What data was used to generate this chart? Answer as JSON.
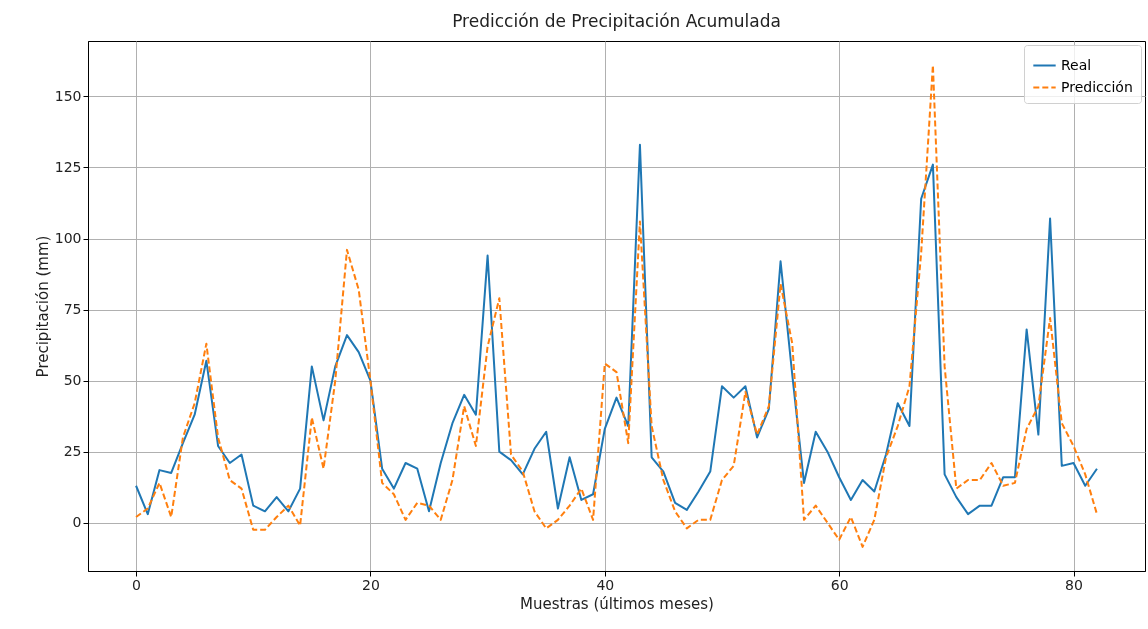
{
  "chart_data": {
    "type": "line",
    "title": "Predicción de Precipitación Acumulada",
    "xlabel": "Muestras (últimos meses)",
    "ylabel": "Precipitación (mm)",
    "x": [
      0,
      1,
      2,
      3,
      4,
      5,
      6,
      7,
      8,
      9,
      10,
      11,
      12,
      13,
      14,
      15,
      16,
      17,
      18,
      19,
      20,
      21,
      22,
      23,
      24,
      25,
      26,
      27,
      28,
      29,
      30,
      31,
      32,
      33,
      34,
      35,
      36,
      37,
      38,
      39,
      40,
      41,
      42,
      43,
      44,
      45,
      46,
      47,
      48,
      49,
      50,
      51,
      52,
      53,
      54,
      55,
      56,
      57,
      58,
      59,
      60,
      61,
      62,
      63,
      64,
      65,
      66,
      67,
      68,
      69,
      70,
      71,
      72,
      73,
      74,
      75,
      76,
      77,
      78,
      79,
      80,
      81,
      82
    ],
    "series": [
      {
        "name": "Real",
        "color": "#1f77b4",
        "line_style": "solid",
        "values": [
          13,
          3,
          18.5,
          17.5,
          28,
          38,
          57,
          27,
          21,
          24,
          6,
          4,
          9,
          4,
          12,
          55,
          36,
          55,
          66,
          60,
          50,
          19,
          12,
          21,
          19,
          4,
          21,
          35,
          45,
          38,
          94,
          25,
          22,
          17,
          26,
          32,
          5,
          23,
          8,
          10,
          33,
          44,
          34,
          133,
          23,
          18,
          7,
          4.5,
          11,
          18,
          48,
          44,
          48,
          30,
          40,
          92,
          52,
          14,
          32,
          25,
          16,
          8,
          15,
          11,
          24,
          42,
          34,
          114,
          126,
          17,
          9,
          3,
          6,
          6,
          16,
          16,
          68,
          31,
          107,
          20,
          21,
          13,
          19
        ]
      },
      {
        "name": "Predicción",
        "color": "#ff7f0e",
        "line_style": "dashed",
        "values": [
          2,
          5,
          14,
          2,
          30,
          42,
          63,
          30,
          15,
          12,
          -2.5,
          -2.5,
          2,
          6,
          -1,
          37,
          19,
          50,
          96,
          82,
          50,
          14,
          10,
          1,
          7,
          6,
          1,
          15,
          41,
          27,
          62,
          79,
          24,
          18,
          4,
          -2,
          1,
          6,
          12,
          1,
          56,
          53,
          28,
          106,
          34,
          15,
          4,
          -2,
          1,
          1,
          15,
          20,
          46,
          31,
          41,
          84,
          63,
          1,
          6,
          0,
          -6,
          2,
          -8.5,
          1,
          23,
          34,
          48,
          95,
          161,
          55,
          12,
          15,
          15,
          21,
          13,
          14,
          33,
          41,
          72,
          35,
          27,
          17,
          3
        ]
      }
    ],
    "xlim": [
      -4.1,
      86.1
    ],
    "xticks": [
      0,
      20,
      40,
      60,
      80
    ],
    "ylim": [
      -17,
      169.5
    ],
    "yticks": [
      0,
      25,
      50,
      75,
      100,
      125,
      150
    ],
    "grid": true,
    "legend": "top right"
  }
}
